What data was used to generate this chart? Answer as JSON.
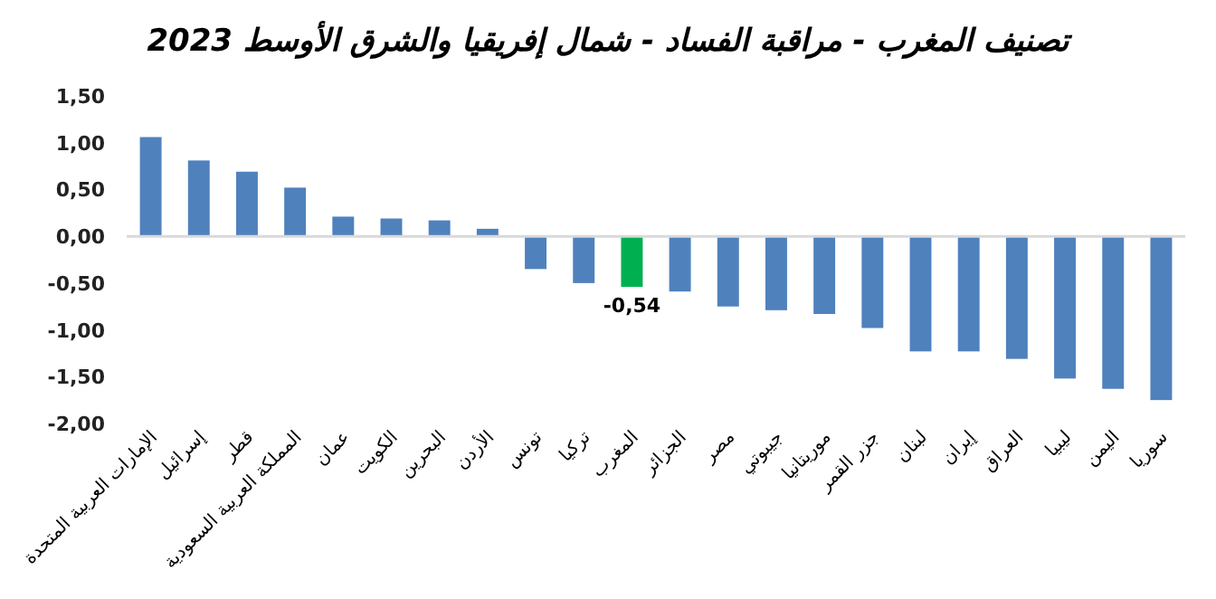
{
  "chart_data": {
    "type": "bar",
    "title": "تصنيف المغرب - مراقبة الفساد - شمال إفريقيا والشرق الأوسط 2023",
    "categories": [
      "الإمارات العربية المتحدة",
      "إسرائيل",
      "قطر",
      "المملكة العربية السعودية",
      "عمان",
      "الكويت",
      "البحرين",
      "الأردن",
      "تونس",
      "تركيا",
      "المغرب",
      "الجزائر",
      "مصر",
      "جيبوتي",
      "موريتانيا",
      "جزر القمر",
      "لبنان",
      "إيران",
      "العراق",
      "ليبيا",
      "اليمن",
      "سوريا"
    ],
    "values": [
      1.06,
      0.81,
      0.69,
      0.52,
      0.21,
      0.19,
      0.17,
      0.08,
      -0.35,
      -0.5,
      -0.54,
      -0.59,
      -0.75,
      -0.79,
      -0.83,
      -0.98,
      -1.23,
      -1.23,
      -1.31,
      -1.52,
      -1.63,
      -1.75
    ],
    "colors": [
      "#4f81bd",
      "#4f81bd",
      "#4f81bd",
      "#4f81bd",
      "#4f81bd",
      "#4f81bd",
      "#4f81bd",
      "#4f81bd",
      "#4f81bd",
      "#4f81bd",
      "#00b050",
      "#4f81bd",
      "#4f81bd",
      "#4f81bd",
      "#4f81bd",
      "#4f81bd",
      "#4f81bd",
      "#4f81bd",
      "#4f81bd",
      "#4f81bd",
      "#4f81bd",
      "#4f81bd"
    ],
    "value_labels": [
      null,
      null,
      null,
      null,
      null,
      null,
      null,
      null,
      null,
      null,
      "-0,54",
      null,
      null,
      null,
      null,
      null,
      null,
      null,
      null,
      null,
      null,
      null
    ],
    "ylim": [
      -2,
      1.5
    ],
    "yticks": [
      {
        "value": -2,
        "label": "-2,00"
      },
      {
        "value": -1.5,
        "label": "-1,50"
      },
      {
        "value": -1,
        "label": "-1,00"
      },
      {
        "value": -0.5,
        "label": "-0,50"
      },
      {
        "value": 0,
        "label": "0,00"
      },
      {
        "value": 0.5,
        "label": "0,50"
      },
      {
        "value": 1,
        "label": "1,00"
      },
      {
        "value": 1.5,
        "label": "1,50"
      }
    ]
  }
}
